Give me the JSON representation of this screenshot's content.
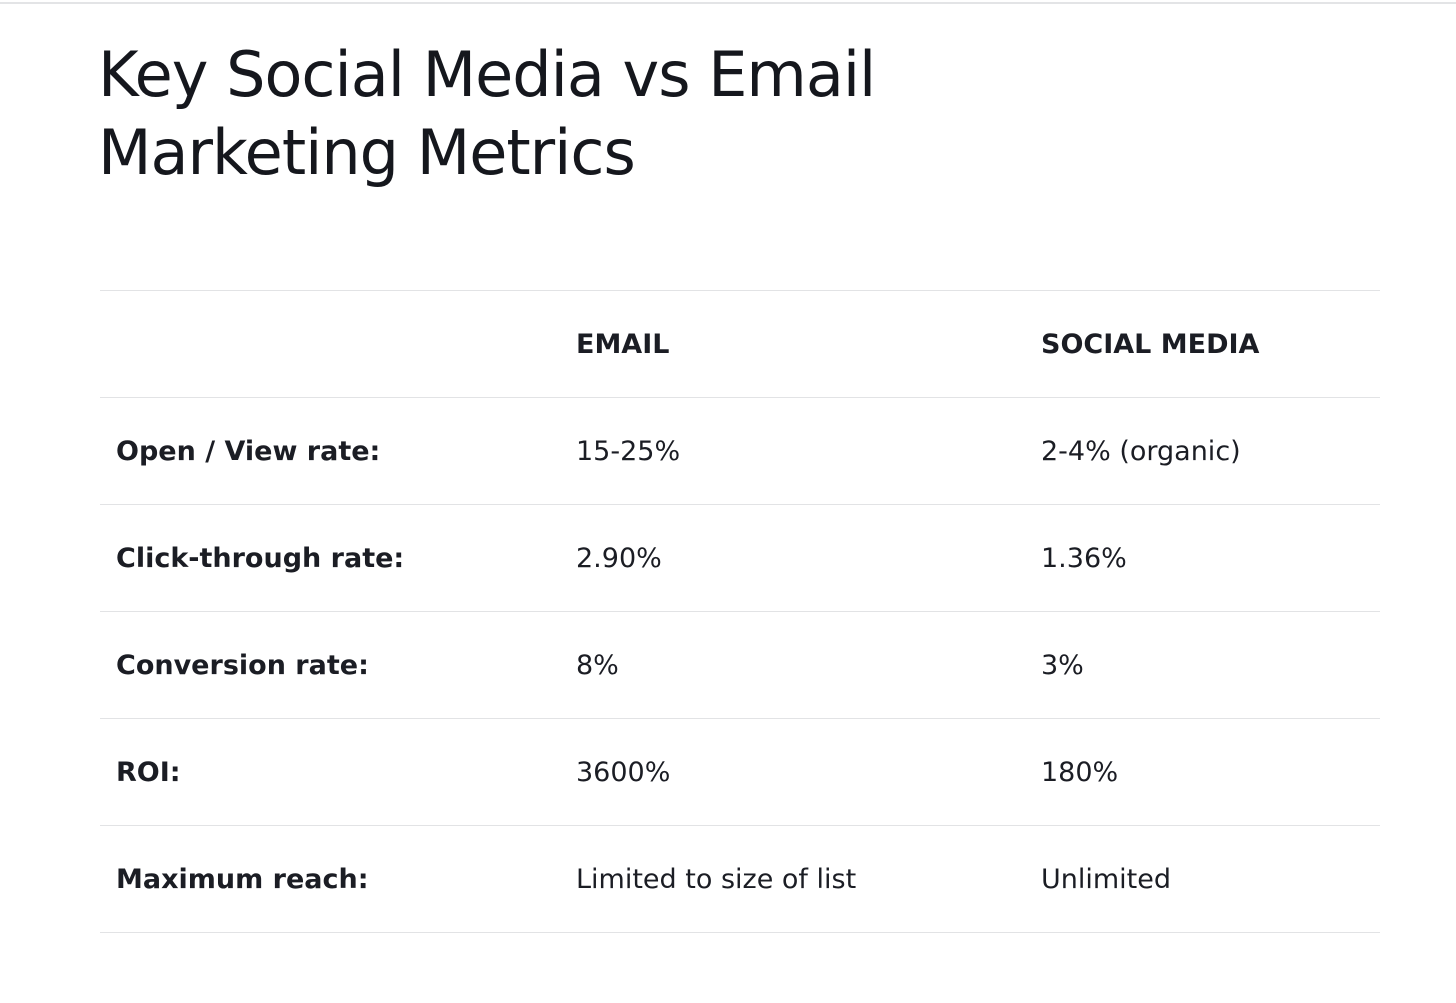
{
  "title": "Key Social Media vs Email Marketing Metrics",
  "table": {
    "headers": [
      "",
      "EMAIL",
      "SOCIAL MEDIA"
    ],
    "rows": [
      {
        "label": "Open / View rate:",
        "email": "15-25%",
        "social": "2-4% (organic)"
      },
      {
        "label": "Click-through rate:",
        "email": "2.90%",
        "social": "1.36%"
      },
      {
        "label": "Conversion rate:",
        "email": "8%",
        "social": "3%"
      },
      {
        "label": "ROI:",
        "email": "3600%",
        "social": "180%"
      },
      {
        "label": "Maximum reach:",
        "email": "Limited to size of list",
        "social": "Unlimited"
      }
    ]
  }
}
